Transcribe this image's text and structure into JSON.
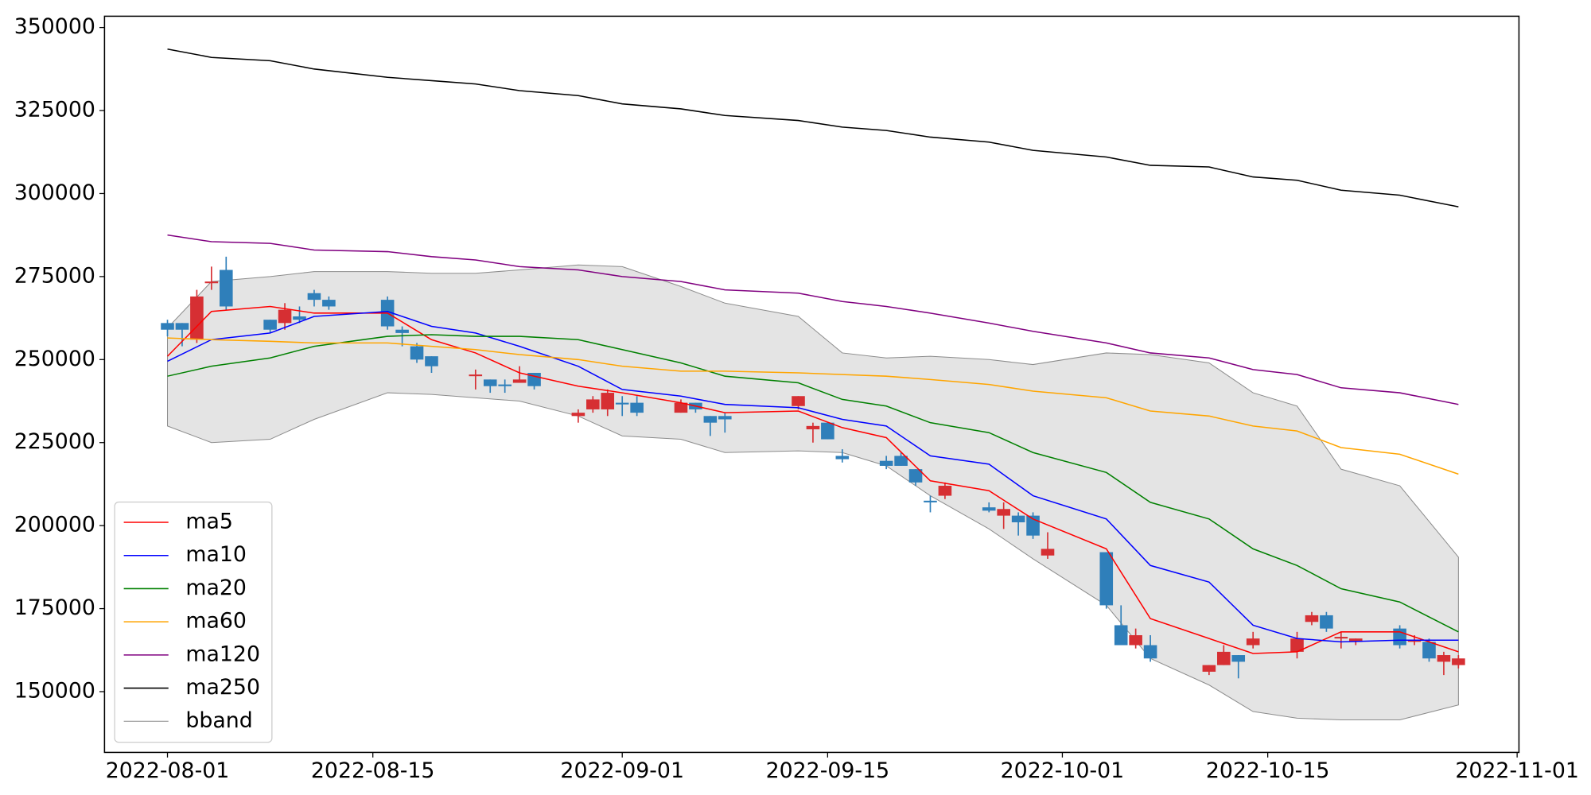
{
  "chart_data": {
    "type": "candlestick",
    "x": [
      "2022-08-01",
      "2022-08-02",
      "2022-08-03",
      "2022-08-04",
      "2022-08-05",
      "2022-08-08",
      "2022-08-09",
      "2022-08-10",
      "2022-08-11",
      "2022-08-12",
      "2022-08-16",
      "2022-08-17",
      "2022-08-18",
      "2022-08-19",
      "2022-08-22",
      "2022-08-23",
      "2022-08-24",
      "2022-08-25",
      "2022-08-26",
      "2022-08-29",
      "2022-08-30",
      "2022-08-31",
      "2022-09-01",
      "2022-09-02",
      "2022-09-05",
      "2022-09-06",
      "2022-09-07",
      "2022-09-08",
      "2022-09-13",
      "2022-09-14",
      "2022-09-15",
      "2022-09-16",
      "2022-09-19",
      "2022-09-20",
      "2022-09-21",
      "2022-09-22",
      "2022-09-23",
      "2022-09-26",
      "2022-09-27",
      "2022-09-28",
      "2022-09-29",
      "2022-09-30",
      "2022-10-04",
      "2022-10-05",
      "2022-10-06",
      "2022-10-07",
      "2022-10-11",
      "2022-10-12",
      "2022-10-13",
      "2022-10-14",
      "2022-10-17",
      "2022-10-18",
      "2022-10-19",
      "2022-10-20",
      "2022-10-21",
      "2022-10-24",
      "2022-10-25",
      "2022-10-26",
      "2022-10-27",
      "2022-10-28"
    ],
    "open": [
      261000,
      261000,
      256000,
      273000,
      277000,
      262000,
      261000,
      263000,
      270000,
      268000,
      268000,
      259000,
      254000,
      251000,
      245000,
      244000,
      242500,
      243000,
      246000,
      233000,
      235000,
      235000,
      237000,
      237000,
      234000,
      237000,
      233000,
      233000,
      236000,
      229000,
      231000,
      221000,
      219500,
      221000,
      217000,
      207500,
      209000,
      205500,
      203000,
      203000,
      203000,
      191000,
      192000,
      170000,
      164000,
      164000,
      156000,
      158000,
      161000,
      164000,
      162000,
      171000,
      173000,
      166000,
      165000,
      169000,
      165000,
      165000,
      159000,
      158000
    ],
    "high": [
      262000,
      261000,
      271000,
      278000,
      281000,
      262000,
      267000,
      266000,
      271000,
      269000,
      269000,
      260000,
      255000,
      251000,
      247000,
      244000,
      244000,
      248000,
      246000,
      235000,
      239000,
      241000,
      239000,
      239000,
      238000,
      237000,
      233000,
      234000,
      239000,
      231000,
      231000,
      223000,
      221000,
      222000,
      217000,
      209000,
      213000,
      207000,
      207000,
      204000,
      204000,
      198000,
      192000,
      176000,
      169000,
      167000,
      158000,
      164000,
      161000,
      168000,
      168000,
      174000,
      174000,
      168000,
      166000,
      170000,
      167000,
      166000,
      162000,
      161000
    ],
    "low": [
      257000,
      254000,
      255000,
      271000,
      265000,
      258000,
      259000,
      261000,
      266000,
      265000,
      259000,
      254000,
      249000,
      246000,
      241000,
      240000,
      240000,
      243000,
      241000,
      231000,
      234000,
      233000,
      233000,
      233000,
      234000,
      234000,
      227000,
      228000,
      235000,
      225000,
      226000,
      219000,
      217000,
      218000,
      212000,
      204000,
      208000,
      204000,
      199000,
      197000,
      196000,
      190000,
      175000,
      164000,
      163000,
      159000,
      155000,
      158000,
      154000,
      163000,
      160000,
      170000,
      168000,
      163000,
      164000,
      163000,
      164000,
      159000,
      155000,
      157000
    ],
    "close": [
      259000,
      259000,
      269000,
      273500,
      266000,
      259000,
      265000,
      262000,
      268000,
      266000,
      260000,
      258000,
      250000,
      248000,
      245500,
      242000,
      242000,
      244000,
      242000,
      234000,
      238000,
      240000,
      236500,
      234000,
      237000,
      235000,
      231000,
      232000,
      239000,
      230000,
      226000,
      220000,
      218000,
      218000,
      213000,
      207000,
      212000,
      204500,
      205000,
      201000,
      197000,
      193000,
      176000,
      164000,
      167000,
      160000,
      158000,
      162000,
      159000,
      166000,
      166000,
      173000,
      169000,
      166500,
      166000,
      164000,
      165500,
      160000,
      161000,
      160000
    ],
    "up_color": "#d62f33",
    "down_color": "#2f7fba",
    "lines": {
      "x": [
        "2022-08-01",
        "2022-08-04",
        "2022-08-08",
        "2022-08-11",
        "2022-08-16",
        "2022-08-19",
        "2022-08-22",
        "2022-08-25",
        "2022-08-29",
        "2022-09-01",
        "2022-09-05",
        "2022-09-08",
        "2022-09-13",
        "2022-09-16",
        "2022-09-19",
        "2022-09-22",
        "2022-09-26",
        "2022-09-29",
        "2022-10-04",
        "2022-10-07",
        "2022-10-11",
        "2022-10-14",
        "2022-10-17",
        "2022-10-20",
        "2022-10-24",
        "2022-10-28"
      ],
      "series": [
        {
          "name": "ma5",
          "color": "#ff0000",
          "values": [
            251000,
            264500,
            266000,
            264000,
            264000,
            256000,
            252000,
            246000,
            242000,
            240000,
            237000,
            234000,
            234500,
            229500,
            226500,
            213500,
            210500,
            202000,
            193000,
            172000,
            166000,
            161500,
            162000,
            168000,
            168000,
            162000
          ]
        },
        {
          "name": "ma10",
          "color": "#0000ff",
          "values": [
            249500,
            256000,
            258000,
            263000,
            264500,
            260000,
            258000,
            254000,
            248000,
            241000,
            239000,
            236500,
            235500,
            232000,
            230000,
            221000,
            218500,
            209000,
            202000,
            188000,
            183000,
            170000,
            166000,
            165000,
            165500,
            165500
          ]
        },
        {
          "name": "ma20",
          "color": "#008000",
          "values": [
            245000,
            248000,
            250500,
            254000,
            257000,
            257500,
            257000,
            257000,
            256000,
            253000,
            249000,
            245000,
            243000,
            238000,
            236000,
            231000,
            228000,
            222000,
            216000,
            207000,
            202000,
            193000,
            188000,
            181000,
            177000,
            168000
          ]
        },
        {
          "name": "ma60",
          "color": "#ffa500",
          "values": [
            256500,
            256000,
            255500,
            255000,
            255000,
            254000,
            253000,
            251500,
            250000,
            248000,
            246500,
            246500,
            246000,
            245500,
            245000,
            244000,
            242500,
            240500,
            238500,
            234500,
            233000,
            230000,
            228500,
            223500,
            221500,
            215500
          ]
        },
        {
          "name": "ma120",
          "color": "#800080",
          "values": [
            287500,
            285500,
            285000,
            283000,
            282500,
            281000,
            280000,
            278000,
            277000,
            275000,
            273500,
            271000,
            270000,
            267500,
            266000,
            264000,
            261000,
            258500,
            255000,
            252000,
            250500,
            247000,
            245500,
            241500,
            240000,
            236500
          ]
        },
        {
          "name": "ma250",
          "color": "#000000",
          "values": [
            343500,
            341000,
            340000,
            337500,
            335000,
            334000,
            333000,
            331000,
            329500,
            327000,
            325500,
            323500,
            322000,
            320000,
            319000,
            317000,
            315500,
            313000,
            311000,
            308500,
            308000,
            305000,
            304000,
            301000,
            299500,
            296000
          ]
        }
      ],
      "band": {
        "name": "bband",
        "color": "#8c8c8c",
        "fill": "#e4e4e4",
        "upper": [
          259500,
          273500,
          275000,
          276500,
          276500,
          276000,
          276000,
          277000,
          278500,
          278000,
          272000,
          267000,
          263000,
          252000,
          250500,
          251000,
          250000,
          248500,
          252000,
          251500,
          249000,
          240000,
          236000,
          217000,
          212000,
          190500
        ],
        "lower": [
          230000,
          225000,
          226000,
          232000,
          240000,
          239500,
          238500,
          237500,
          233000,
          227000,
          226000,
          222000,
          222500,
          222000,
          218000,
          209000,
          199000,
          190000,
          176000,
          160000,
          152000,
          144000,
          142000,
          141500,
          141500,
          146000
        ]
      }
    },
    "xlim": [
      "2022-07-27T17:00",
      "2022-11-01T03:00"
    ],
    "xticks": [
      "2022-08-01",
      "2022-08-15",
      "2022-09-01",
      "2022-09-15",
      "2022-10-01",
      "2022-10-15",
      "2022-11-01"
    ],
    "ylim": [
      131700,
      353400
    ],
    "yticks": [
      150000,
      175000,
      200000,
      225000,
      250000,
      275000,
      300000,
      325000,
      350000
    ],
    "legend": "lower left"
  }
}
